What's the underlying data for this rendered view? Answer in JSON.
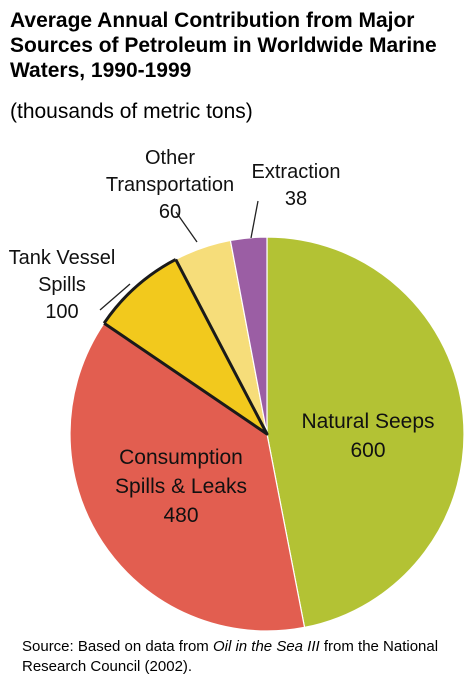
{
  "title": "Average Annual Contribution from Major Sources of Petroleum in Worldwide Marine Waters, 1990-1999",
  "subtitle": "(thousands of metric tons)",
  "source": {
    "prefix": "Source: Based on data from ",
    "book": "Oil in the Sea III",
    "suffix": " from the National Research Council (2002)."
  },
  "colors": {
    "Natural Seeps": "#b3c234",
    "Consumption Spills & Leaks": "#e25e50",
    "Tank Vessel Spills": "#f2c91d",
    "Other Transportation": "#f6dd7a",
    "Extraction": "#9b5ea4"
  },
  "chart_data": {
    "type": "pie",
    "title": "Average Annual Contribution from Major Sources of Petroleum in Worldwide Marine Waters, 1990-1999",
    "subtitle": "(thousands of metric tons)",
    "unit": "thousands of metric tons",
    "slices": [
      {
        "label": "Natural Seeps",
        "label_lines": [
          "Natural Seeps"
        ],
        "value": 600
      },
      {
        "label": "Consumption Spills & Leaks",
        "label_lines": [
          "Consumption",
          "Spills & Leaks"
        ],
        "value": 480
      },
      {
        "label": "Tank Vessel Spills",
        "label_lines": [
          "Tank Vessel",
          "Spills"
        ],
        "value": 100
      },
      {
        "label": "Other Transportation",
        "label_lines": [
          "Other",
          "Transportation"
        ],
        "value": 60
      },
      {
        "label": "Extraction",
        "label_lines": [
          "Extraction"
        ],
        "value": 38
      }
    ]
  }
}
